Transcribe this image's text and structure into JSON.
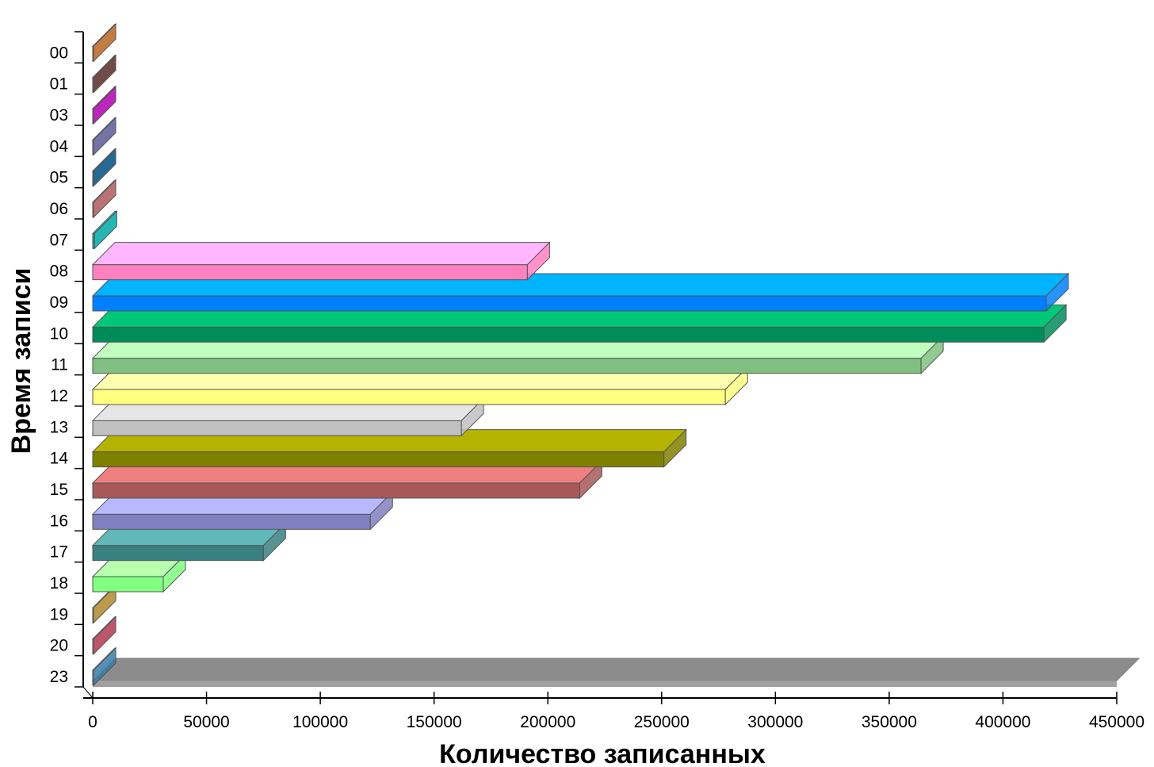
{
  "chart_data": {
    "type": "bar",
    "orientation": "horizontal",
    "style": "3d",
    "xlabel": "Количество записанных",
    "ylabel": "Время записи",
    "xlim": [
      0,
      450000
    ],
    "x_ticks": [
      "0",
      "50000",
      "100000",
      "150000",
      "200000",
      "250000",
      "300000",
      "350000",
      "400000",
      "450000"
    ],
    "grid": false,
    "legend": "none",
    "categories": [
      "00",
      "01",
      "03",
      "04",
      "05",
      "06",
      "07",
      "08",
      "09",
      "10",
      "11",
      "12",
      "13",
      "14",
      "15",
      "16",
      "17",
      "18",
      "19",
      "20",
      "23"
    ],
    "values": [
      200,
      150,
      250,
      150,
      250,
      200,
      800,
      191000,
      419000,
      418000,
      364000,
      278000,
      162000,
      251000,
      214000,
      122000,
      75000,
      31000,
      300,
      200,
      300
    ],
    "colors": [
      {
        "front": "#b8641e",
        "top": "#e08a3c"
      },
      {
        "front": "#5a2a2a",
        "top": "#7a3d3d"
      },
      {
        "front": "#b000b0",
        "top": "#d62ad6"
      },
      {
        "front": "#5a5a96",
        "top": "#7a7ab8"
      },
      {
        "front": "#004f80",
        "top": "#1a75b0"
      },
      {
        "front": "#b05a5a",
        "top": "#d07a7a"
      },
      {
        "front": "#00a8a8",
        "top": "#2acaca"
      },
      {
        "front": "#ff80c0",
        "top": "#ffb6ff"
      },
      {
        "front": "#0080ff",
        "top": "#00b4ff"
      },
      {
        "front": "#008c5a",
        "top": "#00c878"
      },
      {
        "front": "#80c080",
        "top": "#c0ffc0"
      },
      {
        "front": "#ffff80",
        "top": "#ffffb0"
      },
      {
        "front": "#c0c0c0",
        "top": "#e6e6e6"
      },
      {
        "front": "#808000",
        "top": "#b4b400"
      },
      {
        "front": "#a85858",
        "top": "#f08080"
      },
      {
        "front": "#8080c0",
        "top": "#b8b8ff"
      },
      {
        "front": "#3a8080",
        "top": "#60b8b8"
      },
      {
        "front": "#80ff80",
        "top": "#b8ffb0"
      },
      {
        "front": "#b08a2a",
        "top": "#d0a840"
      },
      {
        "front": "#b03850",
        "top": "#d85a70"
      },
      {
        "front": "#3a7aa8",
        "top": "#5a9ac8"
      }
    ]
  }
}
